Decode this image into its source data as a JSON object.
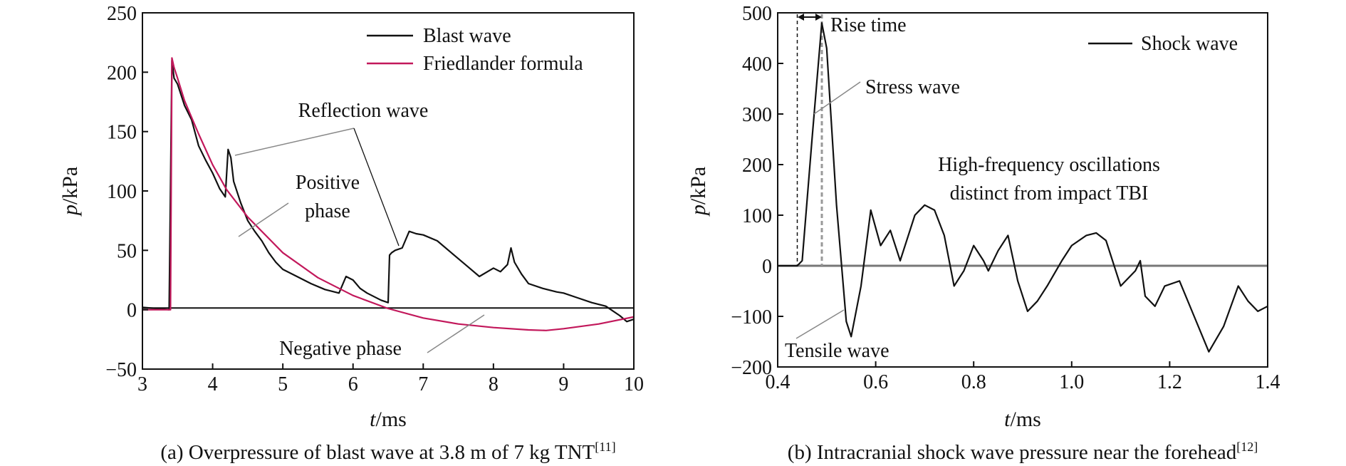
{
  "chart_data": [
    {
      "type": "line",
      "panel_label": "(a)",
      "caption": "(a) Overpressure of blast wave at 3.8 m of 7 kg TNT",
      "caption_ref": "[11]",
      "xlabel_var": "t",
      "xlabel_unit": "/ms",
      "ylabel_var": "p",
      "ylabel_unit": "/kPa",
      "xlim": [
        3,
        10
      ],
      "ylim": [
        -50,
        250
      ],
      "xticks": [
        "3",
        "4",
        "5",
        "6",
        "7",
        "8",
        "9",
        "10"
      ],
      "yticks": [
        "−50",
        "0",
        "50",
        "100",
        "150",
        "200",
        "250"
      ],
      "zero_line": true,
      "legend_position": "top-right",
      "series": [
        {
          "name": "Blast wave",
          "color": "#111111",
          "x": [
            3.0,
            3.2,
            3.38,
            3.42,
            3.45,
            3.5,
            3.6,
            3.7,
            3.8,
            3.9,
            4.0,
            4.1,
            4.18,
            4.22,
            4.26,
            4.3,
            4.4,
            4.5,
            4.6,
            4.7,
            4.8,
            4.9,
            5.0,
            5.2,
            5.4,
            5.6,
            5.8,
            5.9,
            6.0,
            6.1,
            6.2,
            6.4,
            6.5,
            6.52,
            6.55,
            6.6,
            6.7,
            6.8,
            6.9,
            7.0,
            7.2,
            7.4,
            7.6,
            7.8,
            8.0,
            8.1,
            8.2,
            8.25,
            8.3,
            8.4,
            8.5,
            8.7,
            8.9,
            9.0,
            9.2,
            9.4,
            9.6,
            9.8,
            9.9,
            10.0
          ],
          "y": [
            2,
            1,
            0,
            210,
            195,
            190,
            172,
            160,
            138,
            126,
            115,
            102,
            95,
            135,
            128,
            108,
            90,
            75,
            66,
            58,
            48,
            40,
            34,
            28,
            22,
            17,
            14,
            28,
            25,
            18,
            14,
            8,
            6,
            46,
            48,
            50,
            52,
            66,
            64,
            63,
            58,
            48,
            38,
            28,
            35,
            32,
            38,
            52,
            40,
            30,
            22,
            18,
            15,
            14,
            10,
            6,
            3,
            -5,
            -10,
            -8
          ]
        },
        {
          "name": "Friedlander formula",
          "color": "#c2185b",
          "x": [
            3.0,
            3.2,
            3.4,
            3.42,
            3.45,
            3.5,
            3.6,
            3.8,
            4.0,
            4.2,
            4.5,
            5.0,
            5.5,
            6.0,
            6.5,
            7.0,
            7.5,
            8.0,
            8.5,
            8.75,
            9.0,
            9.5,
            10.0
          ],
          "y": [
            0,
            0,
            0,
            212,
            204,
            195,
            176,
            148,
            122,
            101,
            78,
            48,
            27,
            12,
            1,
            -7,
            -12,
            -15,
            -17,
            -17.5,
            -16,
            -12,
            -6
          ]
        }
      ],
      "annotations": [
        "Reflection wave",
        "Positive",
        "phase",
        "Negative phase"
      ]
    },
    {
      "type": "line",
      "panel_label": "(b)",
      "caption": "(b) Intracranial shock wave pressure near the forehead",
      "caption_ref": "[12]",
      "xlabel_var": "t",
      "xlabel_unit": "/ms",
      "ylabel_var": "p",
      "ylabel_unit": "/kPa",
      "xlim": [
        0.4,
        1.4
      ],
      "ylim": [
        -200,
        500
      ],
      "xticks": [
        "0.4",
        "0.6",
        "0.8",
        "1.0",
        "1.2",
        "1.4"
      ],
      "yticks": [
        "−200",
        "−100",
        "0",
        "100",
        "200",
        "300",
        "400",
        "500"
      ],
      "zero_line": true,
      "legend_position": "top-right",
      "series": [
        {
          "name": "Shock wave",
          "color": "#111111",
          "x": [
            0.4,
            0.44,
            0.45,
            0.47,
            0.49,
            0.5,
            0.52,
            0.54,
            0.55,
            0.57,
            0.59,
            0.61,
            0.63,
            0.65,
            0.68,
            0.7,
            0.72,
            0.74,
            0.76,
            0.78,
            0.8,
            0.82,
            0.83,
            0.85,
            0.87,
            0.89,
            0.91,
            0.93,
            0.95,
            0.98,
            1.0,
            1.03,
            1.05,
            1.07,
            1.1,
            1.13,
            1.14,
            1.15,
            1.17,
            1.19,
            1.22,
            1.25,
            1.28,
            1.31,
            1.34,
            1.36,
            1.38,
            1.4
          ],
          "y": [
            0,
            0,
            10,
            250,
            480,
            430,
            120,
            -110,
            -140,
            -40,
            110,
            40,
            70,
            10,
            100,
            120,
            110,
            60,
            -40,
            -10,
            40,
            10,
            -10,
            30,
            60,
            -30,
            -90,
            -70,
            -40,
            10,
            40,
            60,
            65,
            50,
            -40,
            -10,
            10,
            -60,
            -80,
            -40,
            -30,
            -100,
            -170,
            -120,
            -40,
            -70,
            -90,
            -80
          ]
        }
      ],
      "annotations": [
        "Rise time",
        "Stress wave",
        "High-frequency oscillations",
        "distinct from impact TBI",
        "Tensile wave"
      ]
    }
  ]
}
